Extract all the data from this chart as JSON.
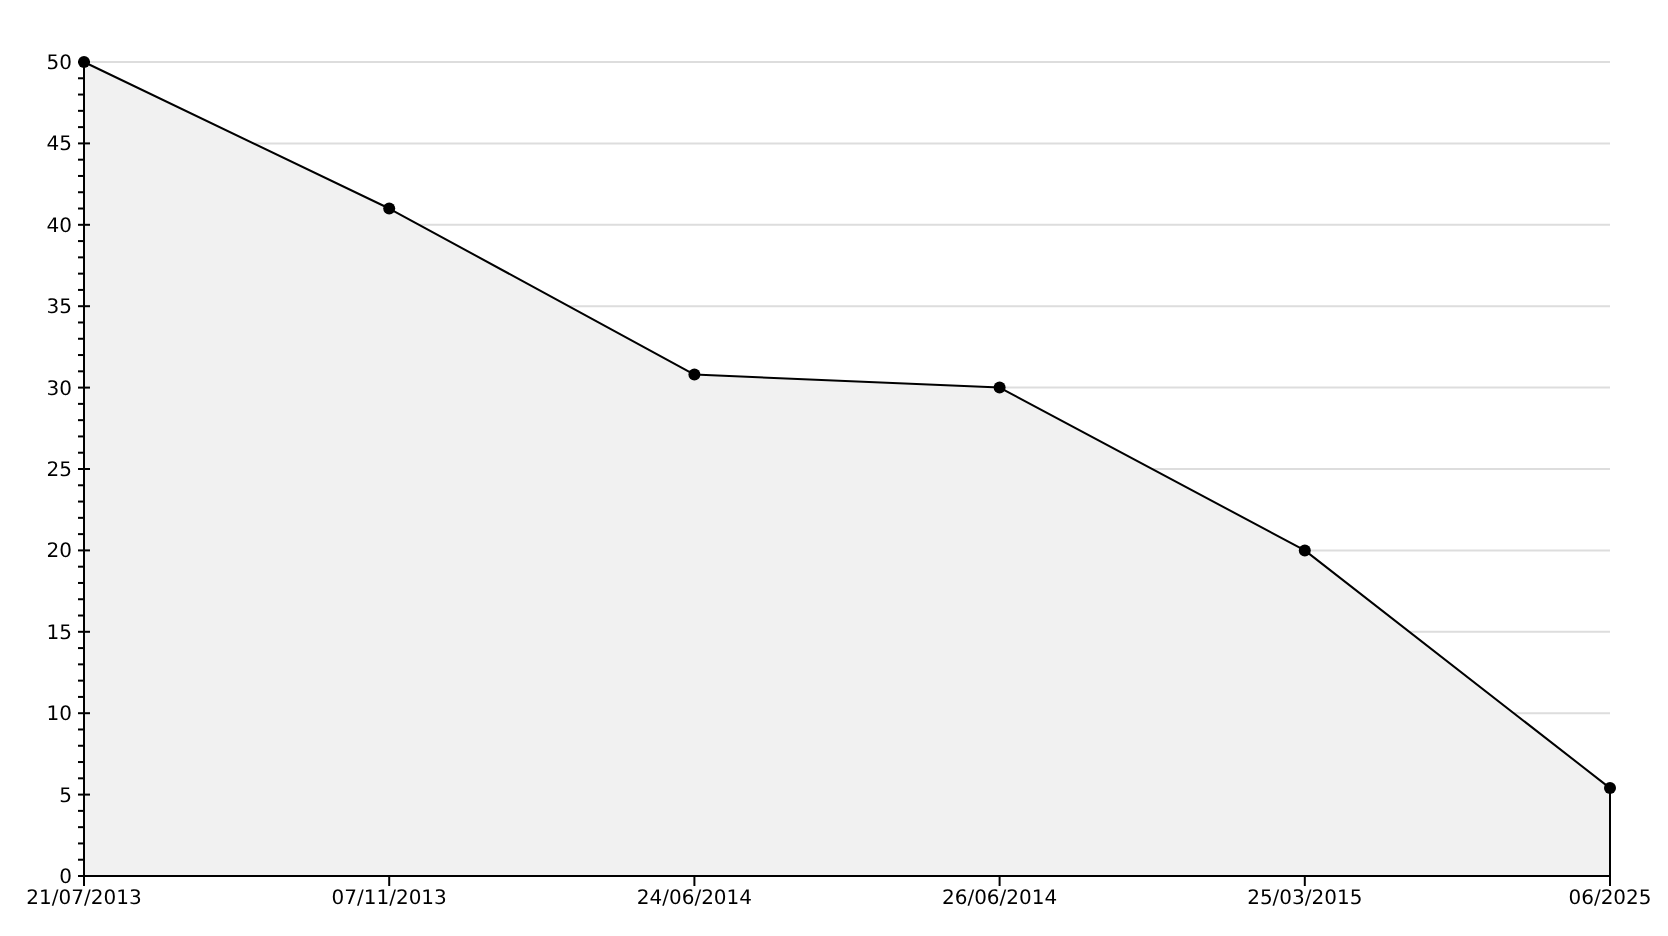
{
  "chart_data": {
    "type": "area",
    "categories": [
      "21/07/2013",
      "07/11/2013",
      "24/06/2014",
      "26/06/2014",
      "25/03/2015",
      "06/2025"
    ],
    "series": [
      {
        "color": "#f1f1f1",
        "values": [
          50,
          41,
          30.8,
          30,
          20,
          5.4
        ]
      }
    ],
    "ylim": [
      0,
      50
    ],
    "yticks": [
      0,
      {
        "value": 1,
        "label": null
      },
      {
        "value": 2,
        "label": null
      },
      {
        "value": 3,
        "label": null
      },
      {
        "value": 4,
        "label": null
      },
      5,
      {
        "value": 6,
        "label": null
      },
      {
        "value": 7,
        "label": null
      },
      {
        "value": 8,
        "label": null
      },
      {
        "value": 9,
        "label": null
      },
      10,
      {
        "value": 11,
        "label": null
      },
      {
        "value": 12,
        "label": null
      },
      {
        "value": 13,
        "label": null
      },
      {
        "value": 14,
        "label": null
      },
      15,
      {
        "value": 16,
        "label": null
      },
      {
        "value": 17,
        "label": null
      },
      {
        "value": 18,
        "label": null
      },
      {
        "value": 19,
        "label": null
      },
      20,
      {
        "value": 21,
        "label": null
      },
      {
        "value": 22,
        "label": null
      },
      {
        "value": 23,
        "label": null
      },
      {
        "value": 24,
        "label": null
      },
      25,
      {
        "value": 26,
        "label": null
      },
      {
        "value": 27,
        "label": null
      },
      {
        "value": 28,
        "label": null
      },
      {
        "value": 29,
        "label": null
      },
      30,
      {
        "value": 31,
        "label": null
      },
      {
        "value": 32,
        "label": null
      },
      {
        "value": 33,
        "label": null
      },
      {
        "value": 34,
        "label": null
      },
      35,
      {
        "value": 36,
        "label": null
      },
      {
        "value": 37,
        "label": null
      },
      {
        "value": 38,
        "label": null
      },
      {
        "value": 39,
        "label": null
      },
      40,
      {
        "value": 41,
        "label": null
      },
      {
        "value": 42,
        "label": null
      },
      {
        "value": 43,
        "label": null
      },
      {
        "value": 44,
        "label": null
      },
      45,
      {
        "value": 46,
        "label": null
      },
      {
        "value": 47,
        "label": null
      },
      {
        "value": 48,
        "label": null
      },
      {
        "value": 49,
        "label": null
      },
      50
    ],
    "grid": "y",
    "marker": "circle",
    "line_style": "solid"
  }
}
